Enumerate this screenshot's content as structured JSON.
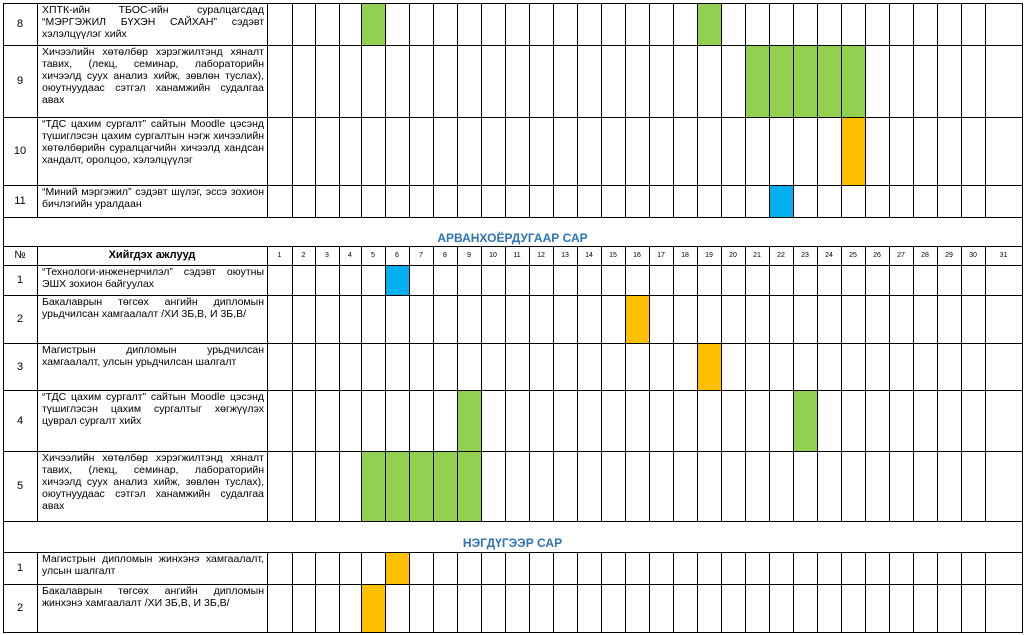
{
  "colors": {
    "green": "#92D050",
    "orange": "#FFC000",
    "blue": "#00B0F0",
    "month_title": "#2E74B5",
    "grid": "#000000"
  },
  "header": {
    "number_label": "№",
    "task_label": "Хийгдэх ажлууд",
    "days": [
      "1",
      "2",
      "3",
      "4",
      "5",
      "6",
      "7",
      "8",
      "9",
      "10",
      "11",
      "12",
      "13",
      "14",
      "15",
      "16",
      "17",
      "18",
      "19",
      "20",
      "21",
      "22",
      "23",
      "24",
      "25",
      "26",
      "27",
      "28",
      "29",
      "30",
      "31"
    ]
  },
  "sections": [
    {
      "month": "",
      "rows": [
        {
          "number": "8",
          "task": "ХПТК-ийн ТБОС-ийн суралцагсдад “МЭРГЭЖИЛ БҮХЭН САЙХАН” сэдэвт хэлэлцүүлэг хийх",
          "marks": [
            {
              "day": 5,
              "color": "green"
            },
            {
              "day": 19,
              "color": "green"
            }
          ]
        },
        {
          "number": "9",
          "task": "Хичээлийн хөтөлбөр хэрэгжилтэнд хяналт тавих, (лекц, семинар, лабораторийн хичээлд суух анализ хийж, зөвлөн туслах), оюутнуудаас сэтгэл ханамжийн судалгаа авах",
          "marks": [
            {
              "day": 21,
              "color": "green"
            },
            {
              "day": 22,
              "color": "green"
            },
            {
              "day": 23,
              "color": "green"
            },
            {
              "day": 24,
              "color": "green"
            },
            {
              "day": 25,
              "color": "green"
            }
          ]
        },
        {
          "number": "10",
          "task": "“ТДС цахим сургалт” сайтын Moodle цэсэнд түшиглэсэн цахим сургалтын нэгж хичээлийн хөтөлбөрийн суралцагчийн хичээлд хандсан хандалт, оролцоо, хэлэлцүүлэг",
          "marks": [
            {
              "day": 25,
              "color": "orange"
            }
          ]
        },
        {
          "number": "11",
          "task": "“Миний мэргэжил” сэдэвт шүлэг, эссэ зохион бичлэгийн уралдаан",
          "marks": [
            {
              "day": 22,
              "color": "blue"
            }
          ]
        }
      ]
    },
    {
      "month": "АРВАНХОЁРДУГААР САР",
      "rows": [
        {
          "number": "1",
          "task": "“Технологи-инженерчилэл” сэдэвт оюутны ЭШХ зохион байгуулах",
          "marks": [
            {
              "day": 6,
              "color": "blue"
            }
          ]
        },
        {
          "number": "2",
          "task": "Бакалаврын төгсөх ангийн дипломын урьдчилсан хамгаалалт /ХИ 3Б,В, И 3Б,В/",
          "marks": [
            {
              "day": 16,
              "color": "orange"
            }
          ]
        },
        {
          "number": "3",
          "task": "Магистрын дипломын урьдчилсан хамгаалалт, улсын урьдчилсан шалгалт",
          "marks": [
            {
              "day": 19,
              "color": "orange"
            }
          ]
        },
        {
          "number": "4",
          "task": "“ТДС цахим сургалт” сайтын Moodle цэсэнд түшиглэсэн цахим сургалтыг хөгжүүлэх цуврал сургалт хийх",
          "marks": [
            {
              "day": 9,
              "color": "green"
            },
            {
              "day": 23,
              "color": "green"
            }
          ]
        },
        {
          "number": "5",
          "task": "Хичээлийн хөтөлбөр хэрэгжилтэнд хяналт тавих, (лекц, семинар, лабораторийн хичээлд суух анализ хийж, зөвлөн туслах), оюутнуудаас сэтгэл ханамжийн судалгаа авах",
          "marks": [
            {
              "day": 5,
              "color": "green"
            },
            {
              "day": 6,
              "color": "green"
            },
            {
              "day": 7,
              "color": "green"
            },
            {
              "day": 8,
              "color": "green"
            },
            {
              "day": 9,
              "color": "green"
            }
          ]
        }
      ]
    },
    {
      "month": "НЭГДҮГЭЭР САР",
      "rows": [
        {
          "number": "1",
          "task": "Магистрын дипломын жинхэнэ хамгаалалт, улсын шалгалт",
          "marks": [
            {
              "day": 6,
              "color": "orange"
            }
          ]
        },
        {
          "number": "2",
          "task": "Бакалаврын төгсөх ангийн дипломын жинхэнэ хамгаалалт /ХИ 3Б,В, И 3Б,В/",
          "marks": [
            {
              "day": 5,
              "color": "orange"
            }
          ]
        }
      ]
    }
  ]
}
